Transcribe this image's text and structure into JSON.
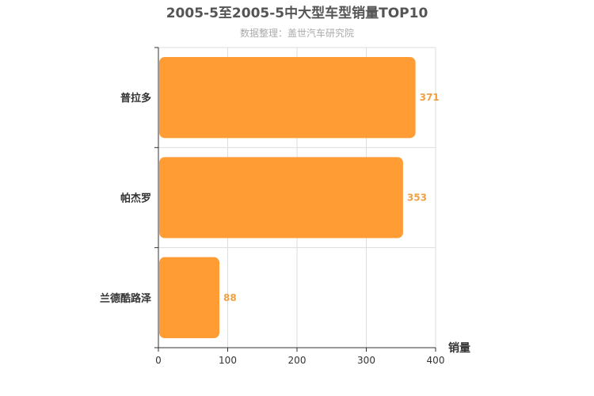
{
  "chart_data": {
    "type": "bar",
    "orientation": "horizontal",
    "title": "2005-5至2005-5中大型车型销量TOP10",
    "subtitle": "数据整理：盖世汽车研究院",
    "categories": [
      "普拉多",
      "帕杰罗",
      "兰德酷路泽"
    ],
    "values": [
      371,
      353,
      88
    ],
    "xlabel": "销量",
    "xlim": [
      0,
      400
    ],
    "xticks": [
      "0",
      "100",
      "200",
      "300",
      "400"
    ],
    "bar_color": "#ff9c33",
    "label_color": "#f0a040",
    "grid": true
  }
}
